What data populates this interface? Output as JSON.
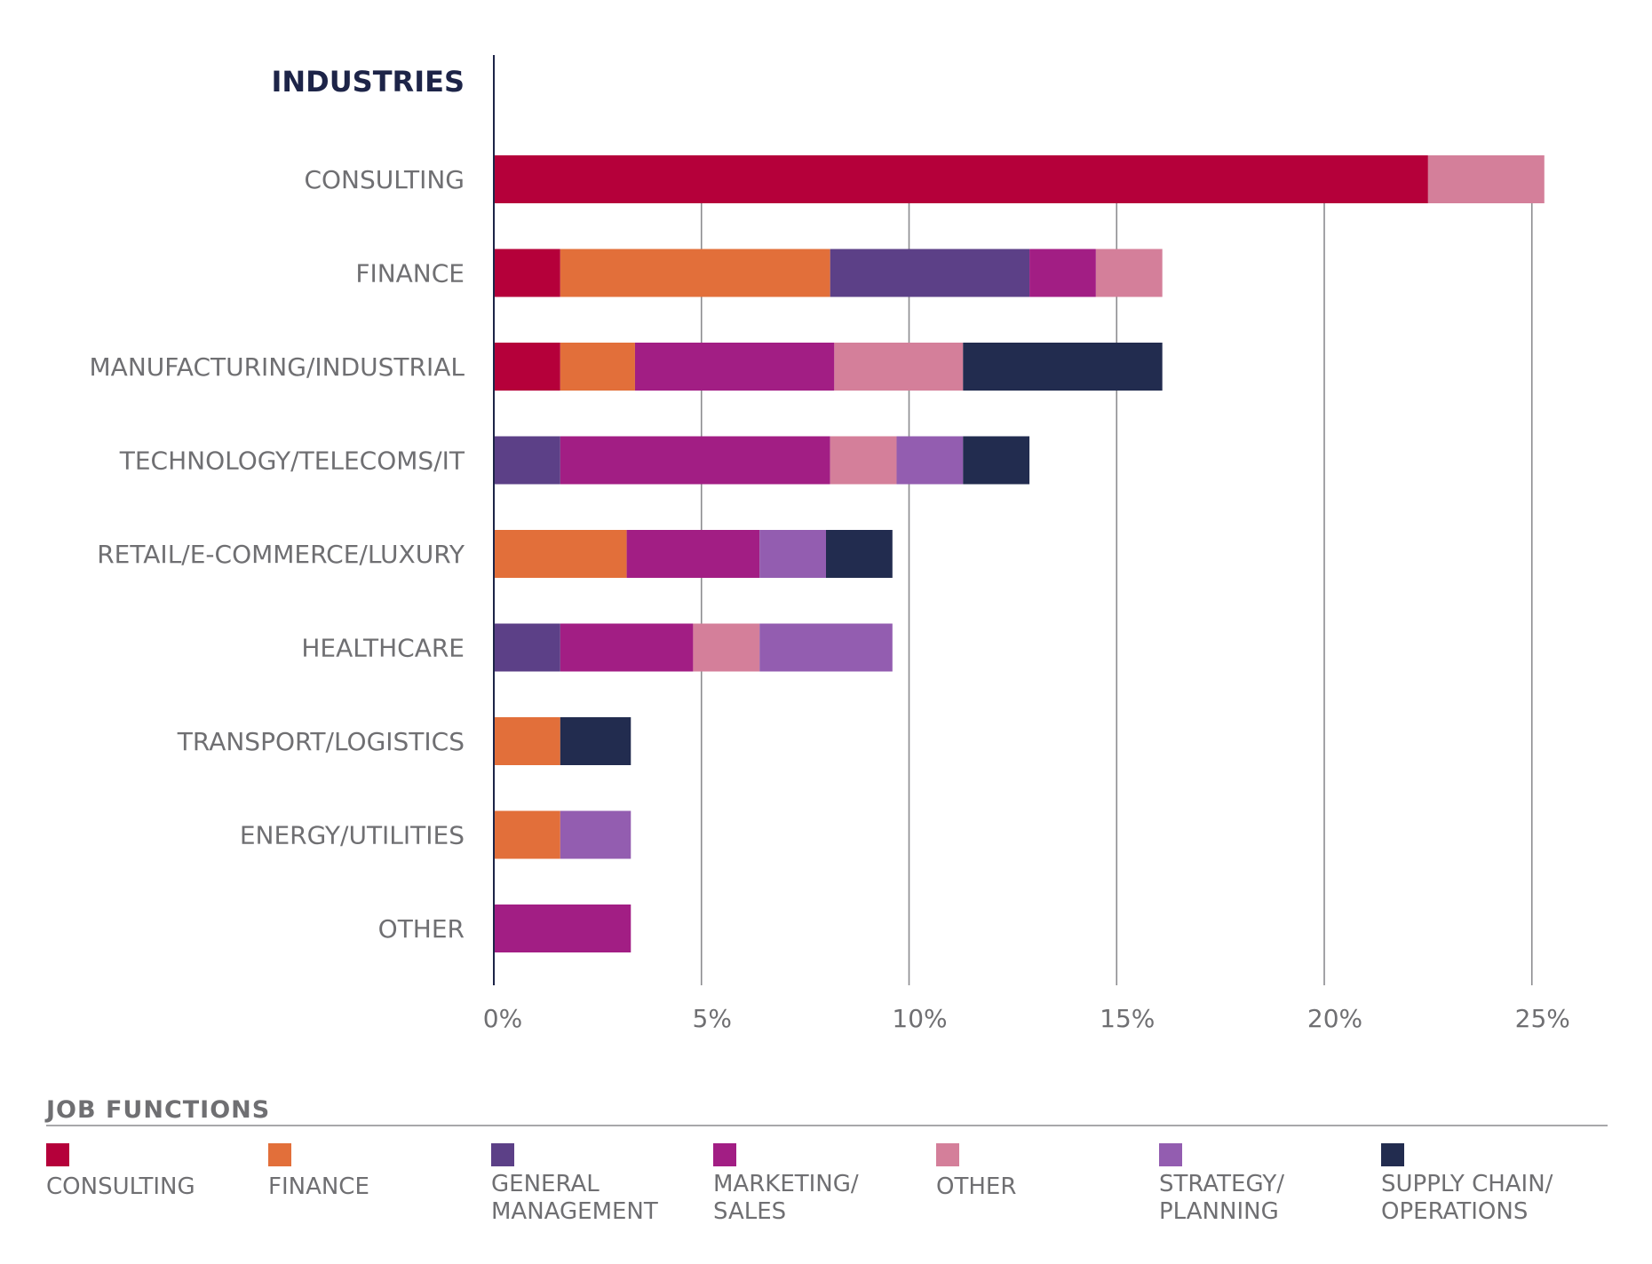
{
  "chart_data": {
    "type": "bar",
    "orientation": "horizontal",
    "stacked": true,
    "title": "INDUSTRIES",
    "categories": [
      "CONSULTING",
      "FINANCE",
      "MANUFACTURING/INDUSTRIAL",
      "TECHNOLOGY/TELECOMS/IT",
      "RETAIL/E-COMMERCE/LUXURY",
      "HEALTHCARE",
      "TRANSPORT/LOGISTICS",
      "ENERGY/UTILITIES",
      "OTHER"
    ],
    "xlim": [
      0,
      25
    ],
    "xticks": [
      0,
      5,
      10,
      15,
      20,
      25
    ],
    "xtick_labels": [
      "0%",
      "5%",
      "10%",
      "15%",
      "20%",
      "25%"
    ],
    "grid": "vertical",
    "legend_title": "JOB FUNCTIONS",
    "legend_position": "bottom",
    "series": [
      {
        "name": "CONSULTING",
        "color": "#b5003a",
        "values": [
          22.5,
          1.6,
          1.6,
          0,
          0,
          0,
          0,
          0,
          0
        ]
      },
      {
        "name": "FINANCE",
        "color": "#e26f3a",
        "values": [
          0,
          6.5,
          1.8,
          0,
          3.2,
          0,
          1.6,
          1.6,
          0
        ]
      },
      {
        "name": "GENERAL MANAGEMENT",
        "color": "#5c4087",
        "values": [
          0,
          4.8,
          0,
          1.6,
          0,
          1.6,
          0,
          0,
          0
        ]
      },
      {
        "name": "MARKETING/ SALES",
        "color": "#a21e84",
        "values": [
          0,
          1.6,
          4.8,
          6.5,
          3.2,
          3.2,
          0,
          0,
          3.3
        ]
      },
      {
        "name": "OTHER",
        "color": "#d47f9a",
        "values": [
          2.8,
          1.6,
          3.1,
          1.6,
          0,
          1.6,
          0,
          0,
          0
        ]
      },
      {
        "name": "STRATEGY/ PLANNING",
        "color": "#935db0",
        "values": [
          0,
          0,
          0,
          1.6,
          1.6,
          3.2,
          0,
          1.7,
          0
        ]
      },
      {
        "name": "SUPPLY CHAIN/ OPERATIONS",
        "color": "#222c4f",
        "values": [
          0,
          0,
          4.8,
          1.6,
          1.6,
          0,
          1.7,
          0,
          0
        ]
      }
    ],
    "legend_labels": [
      [
        "CONSULTING"
      ],
      [
        "FINANCE"
      ],
      [
        "GENERAL",
        "MANAGEMENT"
      ],
      [
        "MARKETING/",
        "SALES"
      ],
      [
        "OTHER"
      ],
      [
        "STRATEGY/",
        "PLANNING"
      ],
      [
        "SUPPLY CHAIN/",
        "OPERATIONS"
      ]
    ]
  }
}
